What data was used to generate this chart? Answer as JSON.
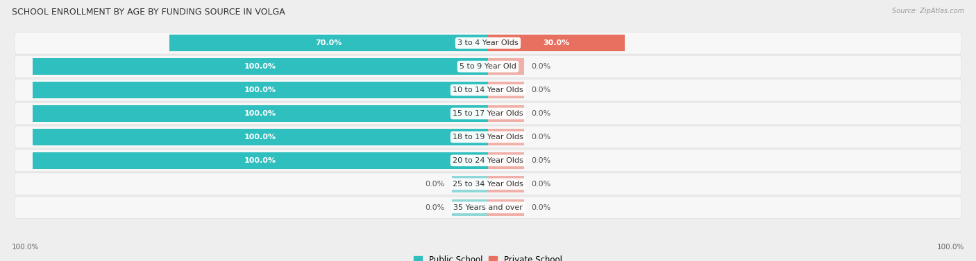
{
  "title": "SCHOOL ENROLLMENT BY AGE BY FUNDING SOURCE IN VOLGA",
  "source": "Source: ZipAtlas.com",
  "categories": [
    "3 to 4 Year Olds",
    "5 to 9 Year Old",
    "10 to 14 Year Olds",
    "15 to 17 Year Olds",
    "18 to 19 Year Olds",
    "20 to 24 Year Olds",
    "25 to 34 Year Olds",
    "35 Years and over"
  ],
  "public_values": [
    70.0,
    100.0,
    100.0,
    100.0,
    100.0,
    100.0,
    0.0,
    0.0
  ],
  "private_values": [
    30.0,
    0.0,
    0.0,
    0.0,
    0.0,
    0.0,
    0.0,
    0.0
  ],
  "public_color": "#30bfbf",
  "private_color": "#e87060",
  "public_color_light": "#90d8d8",
  "private_color_light": "#f0b0a8",
  "bg_color": "#eeeeee",
  "row_bg_color": "#f7f7f7",
  "row_sep_color": "#dddddd",
  "label_font_size": 8,
  "title_font_size": 9,
  "value_font_size": 8,
  "max_value": 100.0,
  "axis_label_left": "100.0%",
  "axis_label_right": "100.0%",
  "stub_size": 8.0
}
